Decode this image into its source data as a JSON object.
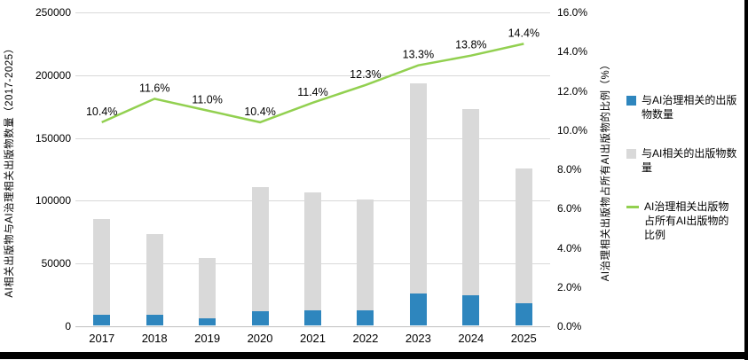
{
  "window": {
    "background": "#ffffff",
    "frame_border_color": "#000000"
  },
  "chart_data": {
    "type": "bar",
    "subtype": "combo-bar-line-dual-axis",
    "categories": [
      "2017",
      "2018",
      "2019",
      "2020",
      "2021",
      "2022",
      "2023",
      "2024",
      "2025"
    ],
    "series": [
      {
        "name": "与AI治理相关的出版物数量",
        "type": "bar",
        "axis": "left",
        "color": "#2E86BE",
        "values": [
          8800,
          8500,
          5900,
          11400,
          12100,
          12300,
          25700,
          23700,
          18000
        ]
      },
      {
        "name": "与AI相关的出版物数量",
        "type": "bar",
        "axis": "left",
        "color": "#D9D9D9",
        "values": [
          85000,
          73000,
          54000,
          110000,
          106000,
          100000,
          193000,
          172000,
          125000
        ]
      },
      {
        "name": "AI治理相关出版物占所有AI出版物的比例",
        "type": "line",
        "axis": "right",
        "color": "#92D050",
        "values": [
          10.4,
          11.6,
          11.0,
          10.4,
          11.4,
          12.3,
          13.3,
          13.8,
          14.4
        ],
        "point_labels": [
          "10.4%",
          "11.6%",
          "11.0%",
          "10.4%",
          "11.4%",
          "12.3%",
          "13.3%",
          "13.8%",
          "14.4%"
        ]
      }
    ],
    "left_axis": {
      "title": "AI相关出版物与AI治理相关出版物数量（2017-2025）",
      "min": 0,
      "max": 250000,
      "step": 50000,
      "tick_labels": [
        "0",
        "50000",
        "100000",
        "150000",
        "200000",
        "250000"
      ]
    },
    "right_axis": {
      "title": "AI治理相关出版物占所有AI出版物的比例（%）",
      "min": 0,
      "max": 16,
      "step": 2,
      "tick_labels": [
        "0.0%",
        "2.0%",
        "4.0%",
        "6.0%",
        "8.0%",
        "10.0%",
        "12.0%",
        "14.0%",
        "16.0%"
      ]
    },
    "grid": true,
    "legend_position": "right",
    "gridline_color": "#D9D9D9",
    "baseline_color": "#BFBFBF"
  }
}
